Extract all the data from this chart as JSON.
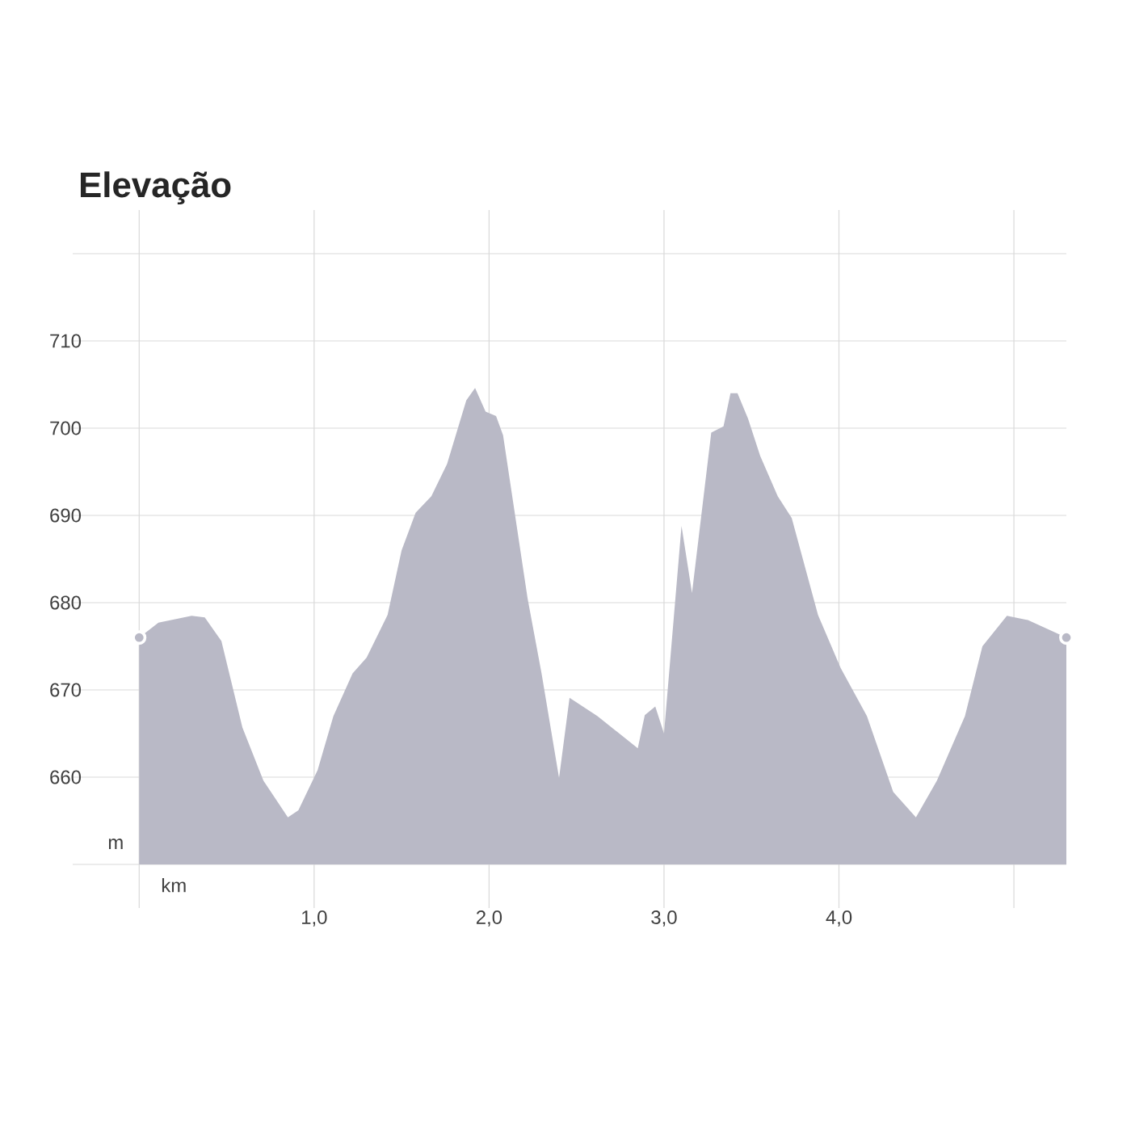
{
  "chart_data": {
    "type": "area",
    "title": "Elevação",
    "xlabel": "km",
    "ylabel": "m",
    "xlim": [
      -0.38,
      5.3
    ],
    "ylim": [
      650,
      720
    ],
    "xticks": [
      {
        "value": 0,
        "label": null
      },
      {
        "value": 1,
        "label": "1,0"
      },
      {
        "value": 2,
        "label": "2,0"
      },
      {
        "value": 3,
        "label": "3,0"
      },
      {
        "value": 4,
        "label": "4,0"
      },
      {
        "value": 5,
        "label": null
      }
    ],
    "yticks": [
      {
        "value": 650,
        "label": null
      },
      660,
      670,
      680,
      690,
      700,
      710,
      {
        "value": 720,
        "label": null
      }
    ],
    "grid": true,
    "series": [
      {
        "color": "#b9b9c6",
        "x": [
          0,
          0.11,
          0.3,
          0.375,
          0.47,
          0.59,
          0.71,
          0.85,
          0.91,
          1.02,
          1.11,
          1.22,
          1.3,
          1.42,
          1.5,
          1.58,
          1.67,
          1.76,
          1.87,
          1.92,
          1.98,
          2.04,
          2.08,
          2.22,
          2.3,
          2.4,
          2.46,
          2.62,
          2.85,
          2.89,
          2.95,
          3.0,
          3.1,
          3.16,
          3.27,
          3.34,
          3.38,
          3.42,
          3.48,
          3.55,
          3.65,
          3.73,
          3.88,
          4.01,
          4.16,
          4.31,
          4.44,
          4.56,
          4.72,
          4.82,
          4.96,
          5.08,
          5.3
        ],
        "values": [
          676,
          677.7,
          678.5,
          678.3,
          675.6,
          665.7,
          659.6,
          655.4,
          656.2,
          660.8,
          667,
          671.9,
          673.7,
          678.6,
          686,
          690.3,
          692.2,
          695.9,
          703.2,
          704.6,
          701.9,
          701.4,
          699.2,
          680.5,
          671.9,
          659.9,
          669.1,
          667,
          663.3,
          667.1,
          668.1,
          665,
          688.8,
          681.1,
          699.5,
          700.2,
          704,
          704,
          701.1,
          696.8,
          692.2,
          689.7,
          678.6,
          672.5,
          667,
          658.3,
          655.4,
          659.6,
          667,
          675,
          678.5,
          678,
          676
        ]
      },
      {
        "type": "scatter",
        "color": "#b9b9c6",
        "marker": "circle",
        "x": [
          0,
          5.3
        ],
        "values": [
          676,
          676
        ]
      }
    ]
  }
}
